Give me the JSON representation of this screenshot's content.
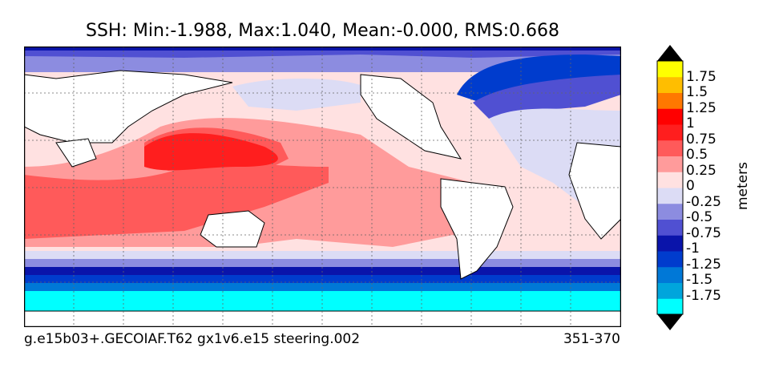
{
  "title": "SSH: Min:-1.988, Max:1.040, Mean:-0.000, RMS:0.668",
  "footer": {
    "case_name": "g.e15b03+.GECOIAF.T62 gx1v6.e15 steering.002",
    "years": "351-370"
  },
  "colorbar": {
    "units": "meters",
    "tick_labels": [
      "1.75",
      "1.5",
      "1.25",
      "1",
      "0.75",
      "0.5",
      "0.25",
      "0",
      "-0.25",
      "-0.5",
      "-0.75",
      "-1",
      "-1.25",
      "-1.5",
      "-1.75"
    ],
    "levels": [
      -2.0,
      -1.75,
      -1.5,
      -1.25,
      -1.0,
      -0.75,
      -0.5,
      -0.25,
      0.0,
      0.25,
      0.5,
      0.75,
      1.0,
      1.25,
      1.5,
      1.75,
      2.0
    ],
    "colors": [
      "#00ffff",
      "#00a5dc",
      "#0078d7",
      "#003ccd",
      "#0a14aa",
      "#5050d2",
      "#8c8ce0",
      "#dcdcf5",
      "#ffe1e1",
      "#ff9b9b",
      "#ff5a5a",
      "#ff1e1e",
      "#ff0000",
      "#ff7800",
      "#ffbe00",
      "#ffff00"
    ]
  },
  "map": {
    "land_color": "#ffffff",
    "grid": true
  }
}
